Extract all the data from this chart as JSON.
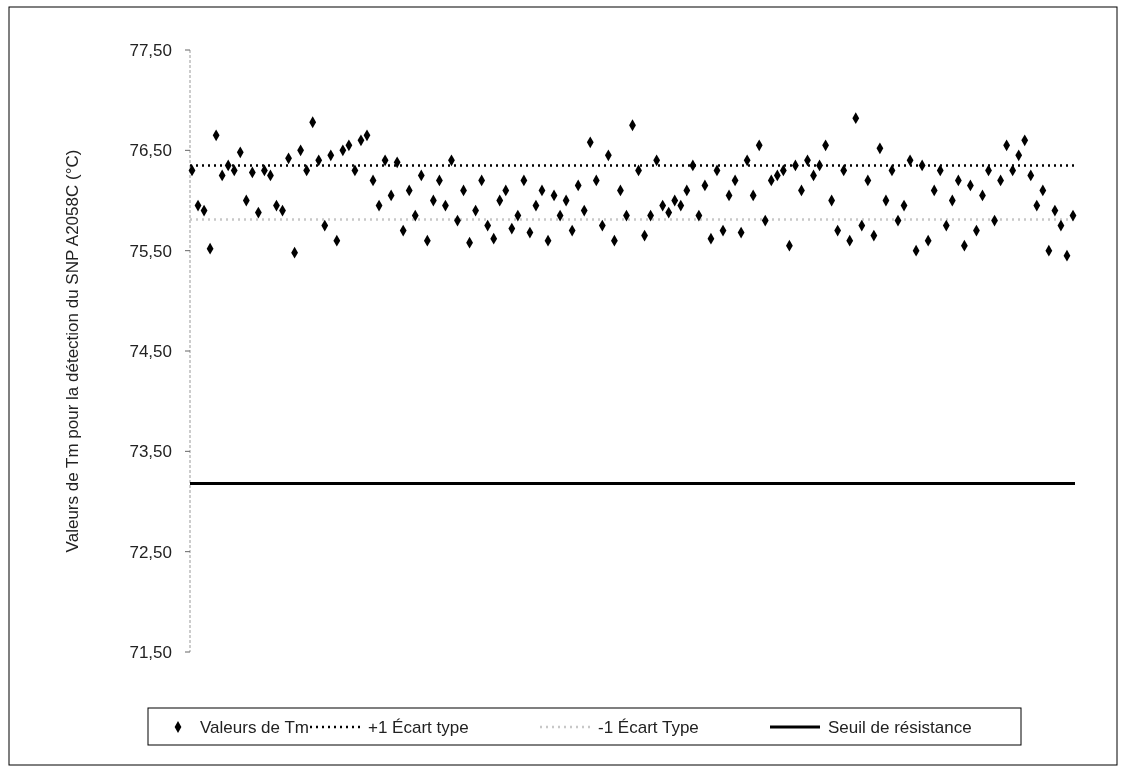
{
  "chart_data": {
    "type": "scatter",
    "ylabel": "Valeurs de Tm pour la détection du SNP A2058C  (°C)",
    "categories": [
      null,
      null,
      null,
      null,
      null,
      null,
      null,
      null,
      null,
      null,
      null,
      null,
      null,
      null,
      null,
      null,
      null,
      null,
      null,
      null,
      null,
      null,
      null,
      null,
      null,
      null,
      null,
      null,
      null,
      null,
      null,
      null,
      null,
      null,
      null,
      null,
      null,
      null,
      null,
      null,
      null,
      null,
      null,
      null,
      null,
      null,
      null,
      null,
      null,
      null,
      null,
      null,
      null,
      null,
      null,
      null,
      null,
      null,
      null,
      null,
      null,
      null,
      null,
      null,
      null,
      null,
      null,
      null,
      null,
      null,
      null,
      null,
      null,
      null,
      null,
      null,
      null,
      null,
      null,
      null,
      null,
      null,
      null,
      null,
      null,
      null,
      null,
      null,
      null,
      null,
      null,
      null,
      null,
      null,
      null,
      null,
      null,
      null,
      null,
      null,
      null,
      null,
      null,
      null,
      null,
      null,
      null,
      null,
      null,
      null,
      null,
      null,
      null,
      null,
      null,
      null,
      null,
      null,
      null,
      null,
      null,
      null,
      null,
      null,
      null,
      null,
      null,
      null,
      null,
      null,
      null,
      null,
      null,
      null,
      null,
      null,
      null,
      null,
      null,
      null,
      null,
      null,
      null,
      null,
      null,
      null,
      null
    ],
    "series": [
      {
        "name": "Valeurs de Tm",
        "color": "#000000",
        "values": [
          76.3,
          75.95,
          75.9,
          75.52,
          76.65,
          76.25,
          76.35,
          76.3,
          76.48,
          76.0,
          76.28,
          75.88,
          76.3,
          76.25,
          75.95,
          75.9,
          76.42,
          75.48,
          76.5,
          76.3,
          76.78,
          76.4,
          75.75,
          76.45,
          75.6,
          76.5,
          76.55,
          76.3,
          76.6,
          76.65,
          76.2,
          75.95,
          76.4,
          76.05,
          76.38,
          75.7,
          76.1,
          75.85,
          76.25,
          75.6,
          76.0,
          76.2,
          75.95,
          76.4,
          75.8,
          76.1,
          75.58,
          75.9,
          76.2,
          75.75,
          75.62,
          76.0,
          76.1,
          75.72,
          75.85,
          76.2,
          75.68,
          75.95,
          76.1,
          75.6,
          76.05,
          75.85,
          76.0,
          75.7,
          76.15,
          75.9,
          76.58,
          76.2,
          75.75,
          76.45,
          75.6,
          76.1,
          75.85,
          76.75,
          76.3,
          75.65,
          75.85,
          76.4,
          75.95,
          75.88,
          76.0,
          75.95,
          76.1,
          76.35,
          75.85,
          76.15,
          75.62,
          76.3,
          75.7,
          76.05,
          76.2,
          75.68,
          76.4,
          76.05,
          76.55,
          75.8,
          76.2,
          76.25,
          76.3,
          75.55,
          76.35,
          76.1,
          76.4,
          76.25,
          76.35,
          76.55,
          76.0,
          75.7,
          76.3,
          75.6,
          76.82,
          75.75,
          76.2,
          75.65,
          76.52,
          76.0,
          76.3,
          75.8,
          75.95,
          76.4,
          75.5,
          76.35,
          75.6,
          76.1,
          76.3,
          75.75,
          76.0,
          76.2,
          75.55,
          76.15,
          75.7,
          76.05,
          76.3,
          75.8,
          76.2,
          76.55,
          76.3,
          76.45,
          76.6,
          76.25,
          75.95,
          76.1,
          75.5,
          75.9,
          75.75,
          75.45,
          75.85
        ]
      }
    ],
    "ref_lines": [
      {
        "axis": "y",
        "value": 76.35,
        "label": "+1 Écart type",
        "color": "#000000",
        "line_style": "dotted"
      },
      {
        "axis": "y",
        "value": 75.81,
        "label": "-1 Écart Type",
        "color": "#c8c8c8",
        "line_style": "dotted"
      },
      {
        "axis": "y",
        "value": 73.18,
        "label": "Seuil de résistance",
        "color": "#000000",
        "line_style": "solid"
      }
    ],
    "ylim": [
      71.5,
      77.5
    ],
    "yticks": [
      {
        "value": 71.5,
        "label": "71,50"
      },
      {
        "value": 72.5,
        "label": "72,50"
      },
      {
        "value": 73.5,
        "label": "73,50"
      },
      {
        "value": 74.5,
        "label": "74,50"
      },
      {
        "value": 75.5,
        "label": "75,50"
      },
      {
        "value": 76.5,
        "label": "76,50"
      },
      {
        "value": 77.5,
        "label": "77,50"
      }
    ],
    "marker": "diamond",
    "grid": false,
    "legend": "bottom",
    "tick_labels": "y"
  }
}
